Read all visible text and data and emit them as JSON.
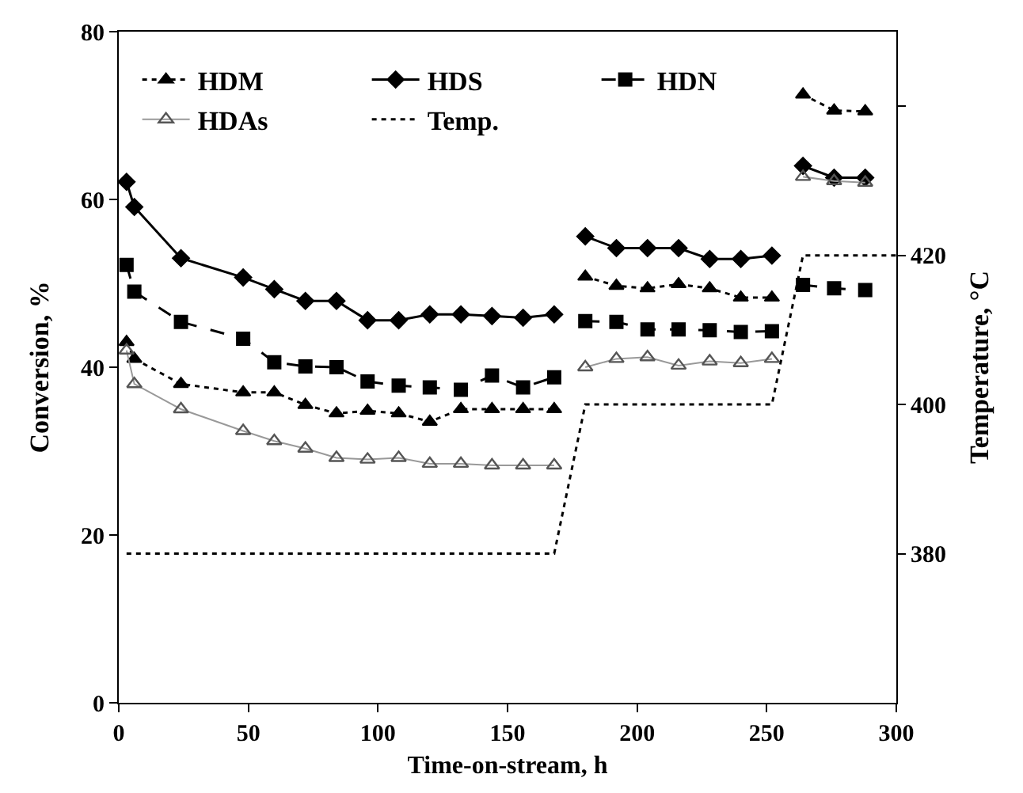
{
  "chart_data": {
    "type": "line",
    "xlabel": "Time-on-stream, h",
    "ylabel": "Conversion, %",
    "y2label": "Temperature, °C",
    "series": [
      {
        "name": "HDM",
        "color": "#000000",
        "marker": "triangle",
        "line_style": "dotted",
        "x": [
          3,
          6,
          24,
          48,
          60,
          72,
          84,
          96,
          108,
          120,
          132,
          144,
          156,
          168
        ],
        "values": [
          43,
          41,
          38,
          37,
          37,
          35.5,
          34.5,
          34.8,
          34.5,
          33.5,
          35,
          35,
          35,
          35
        ]
      },
      {
        "color": "#000000",
        "marker": "triangle",
        "line_style": "dotted",
        "x": [
          180,
          192,
          204,
          216,
          228,
          240,
          252
        ],
        "values": [
          50.8,
          49.7,
          49.4,
          49.9,
          49.4,
          48.3,
          48.3
        ]
      },
      {
        "color": "#000000",
        "marker": "triangle",
        "line_style": "dotted",
        "x": [
          264,
          276,
          288
        ],
        "values": [
          72.5,
          70.6,
          70.5
        ]
      },
      {
        "name": "HDS",
        "color": "#000000",
        "marker": "diamond",
        "line_style": "solid",
        "x": [
          3,
          6,
          24,
          48,
          60,
          72,
          84,
          96,
          108,
          120,
          132,
          144,
          156,
          168
        ],
        "values": [
          62.1,
          59.1,
          53,
          50.7,
          49.3,
          47.9,
          47.9,
          45.6,
          45.6,
          46.3,
          46.3,
          46.1,
          45.9,
          46.3
        ]
      },
      {
        "color": "#000000",
        "marker": "diamond",
        "line_style": "solid",
        "x": [
          180,
          192,
          204,
          216,
          228,
          240,
          252
        ],
        "values": [
          55.6,
          54.2,
          54.2,
          54.2,
          52.9,
          52.9,
          53.3
        ]
      },
      {
        "color": "#000000",
        "marker": "diamond",
        "line_style": "solid",
        "x": [
          264,
          276,
          288
        ],
        "values": [
          64,
          62.6,
          62.6
        ]
      },
      {
        "name": "HDN",
        "color": "#000000",
        "marker": "square",
        "line_style": "dashed",
        "x": [
          3,
          6,
          24,
          48,
          60,
          72,
          84,
          96,
          108,
          120,
          132,
          144,
          156,
          168
        ],
        "values": [
          52.2,
          49,
          45.4,
          43.4,
          40.6,
          40.1,
          40,
          38.3,
          37.8,
          37.6,
          37.3,
          39,
          37.6,
          38.8
        ]
      },
      {
        "color": "#000000",
        "marker": "square",
        "line_style": "dashed",
        "x": [
          180,
          192,
          204,
          216,
          228,
          240,
          252
        ],
        "values": [
          45.5,
          45.4,
          44.5,
          44.5,
          44.4,
          44.2,
          44.3
        ]
      },
      {
        "color": "#000000",
        "marker": "square",
        "line_style": "dashed",
        "x": [
          264,
          276,
          288
        ],
        "values": [
          49.8,
          49.4,
          49.2
        ]
      },
      {
        "name": "HDAs",
        "color": "#999999",
        "marker": "triangle-open",
        "line_style": "solid",
        "x": [
          3,
          6,
          24,
          48,
          60,
          72,
          84,
          96,
          108,
          120,
          132,
          144,
          156,
          168
        ],
        "values": [
          42,
          38,
          35,
          32.4,
          31.2,
          30.3,
          29.2,
          29,
          29.2,
          28.5,
          28.5,
          28.3,
          28.3,
          28.3
        ]
      },
      {
        "color": "#999999",
        "marker": "triangle-open",
        "line_style": "solid",
        "x": [
          180,
          192,
          204,
          216,
          228,
          240,
          252
        ],
        "values": [
          40,
          41,
          41.2,
          40.2,
          40.7,
          40.5,
          41
        ]
      },
      {
        "color": "#999999",
        "marker": "triangle-open",
        "line_style": "solid",
        "x": [
          264,
          276,
          288
        ],
        "values": [
          62.7,
          62.2,
          62
        ]
      },
      {
        "name": "Temp.",
        "color": "#000000",
        "marker": "none",
        "line_style": "dotted",
        "axis": "y2",
        "x": [
          3,
          168,
          180,
          252,
          264,
          300
        ],
        "values": [
          380,
          380,
          400,
          400,
          420,
          420
        ]
      }
    ],
    "xlim": [
      0,
      300
    ],
    "xticks": [
      0,
      50,
      100,
      150,
      200,
      250,
      300
    ],
    "ylim": [
      0,
      80
    ],
    "yticks": [
      0,
      20,
      40,
      60,
      80
    ],
    "y2lim": [
      360,
      450
    ],
    "y2ticks": [
      380,
      400,
      420,
      {
        "value": 440,
        "label": null
      }
    ],
    "legend": "top left"
  }
}
